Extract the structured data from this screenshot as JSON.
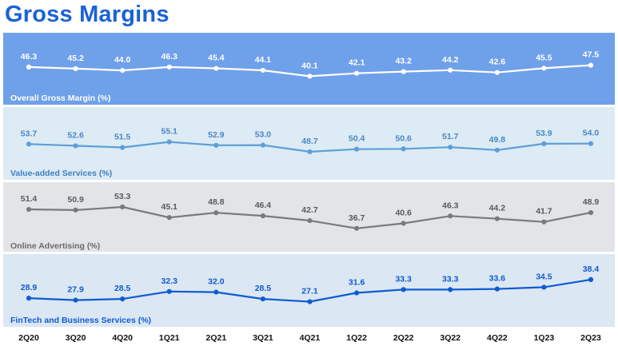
{
  "header": {
    "title": "Gross Margins"
  },
  "chart_data": {
    "type": "line",
    "title": "Gross Margins",
    "categories": [
      "2Q20",
      "3Q20",
      "4Q20",
      "1Q21",
      "2Q21",
      "3Q21",
      "4Q21",
      "1Q22",
      "2Q22",
      "3Q22",
      "4Q22",
      "1Q23",
      "2Q23"
    ],
    "series": [
      {
        "name": "Overall Gross Margin (%)",
        "values": [
          46.3,
          45.2,
          44.0,
          46.3,
          45.4,
          44.1,
          40.1,
          42.1,
          43.2,
          44.2,
          42.6,
          45.5,
          47.5
        ],
        "labels": [
          "46.3",
          "45.2",
          "44.0",
          "46.3",
          "45.4",
          "44.1",
          "40.1",
          "42.1",
          "43.2",
          "44.2",
          "42.6",
          "45.5",
          "47.5"
        ],
        "ylim": [
          36,
          50
        ],
        "colors": {
          "background": "#6fa0ea",
          "line": "#ffffff",
          "value_text": "#ffffff",
          "label_text": "#ffffff"
        }
      },
      {
        "name": "Value-added Services (%)",
        "values": [
          53.7,
          52.6,
          51.5,
          55.1,
          52.9,
          53.0,
          48.7,
          50.4,
          50.6,
          51.7,
          49.8,
          53.9,
          54.0
        ],
        "labels": [
          "53.7",
          "52.6",
          "51.5",
          "55.1",
          "52.9",
          "53.0",
          "48.7",
          "50.4",
          "50.6",
          "51.7",
          "49.8",
          "53.9",
          "54.0"
        ],
        "ylim": [
          44,
          58
        ],
        "colors": {
          "background": "#dcebf4",
          "line": "#5e9fd8",
          "value_text": "#4b86c6",
          "label_text": "#3f7fc4"
        }
      },
      {
        "name": "Online Advertising (%)",
        "values": [
          51.4,
          50.9,
          53.3,
          45.1,
          48.8,
          46.4,
          42.7,
          36.7,
          40.6,
          46.3,
          44.2,
          41.7,
          48.9
        ],
        "labels": [
          "51.4",
          "50.9",
          "53.3",
          "45.1",
          "48.8",
          "46.4",
          "42.7",
          "36.7",
          "40.6",
          "46.3",
          "44.2",
          "41.7",
          "48.9"
        ],
        "ylim": [
          31,
          57
        ],
        "colors": {
          "background": "#e3e4e7",
          "line": "#7a7a7a",
          "value_text": "#5a5a5a",
          "label_text": "#6a6a6a"
        }
      },
      {
        "name": "FinTech and Business Services (%)",
        "values": [
          28.9,
          27.9,
          28.5,
          32.3,
          32.0,
          28.5,
          27.1,
          31.6,
          33.3,
          33.3,
          33.6,
          34.5,
          38.4
        ],
        "labels": [
          "28.9",
          "27.9",
          "28.5",
          "32.3",
          "32.0",
          "28.5",
          "27.1",
          "31.6",
          "33.3",
          "33.3",
          "33.6",
          "34.5",
          "38.4"
        ],
        "ylim": [
          22,
          40
        ],
        "colors": {
          "background": "#dbe7f3",
          "line": "#0f5bd2",
          "value_text": "#0f5bd2",
          "label_text": "#0f5bd2"
        }
      }
    ],
    "xlabel": "",
    "ylabel": "",
    "grid": false,
    "legend": "inline panel labels (bottom-left of each panel)"
  }
}
